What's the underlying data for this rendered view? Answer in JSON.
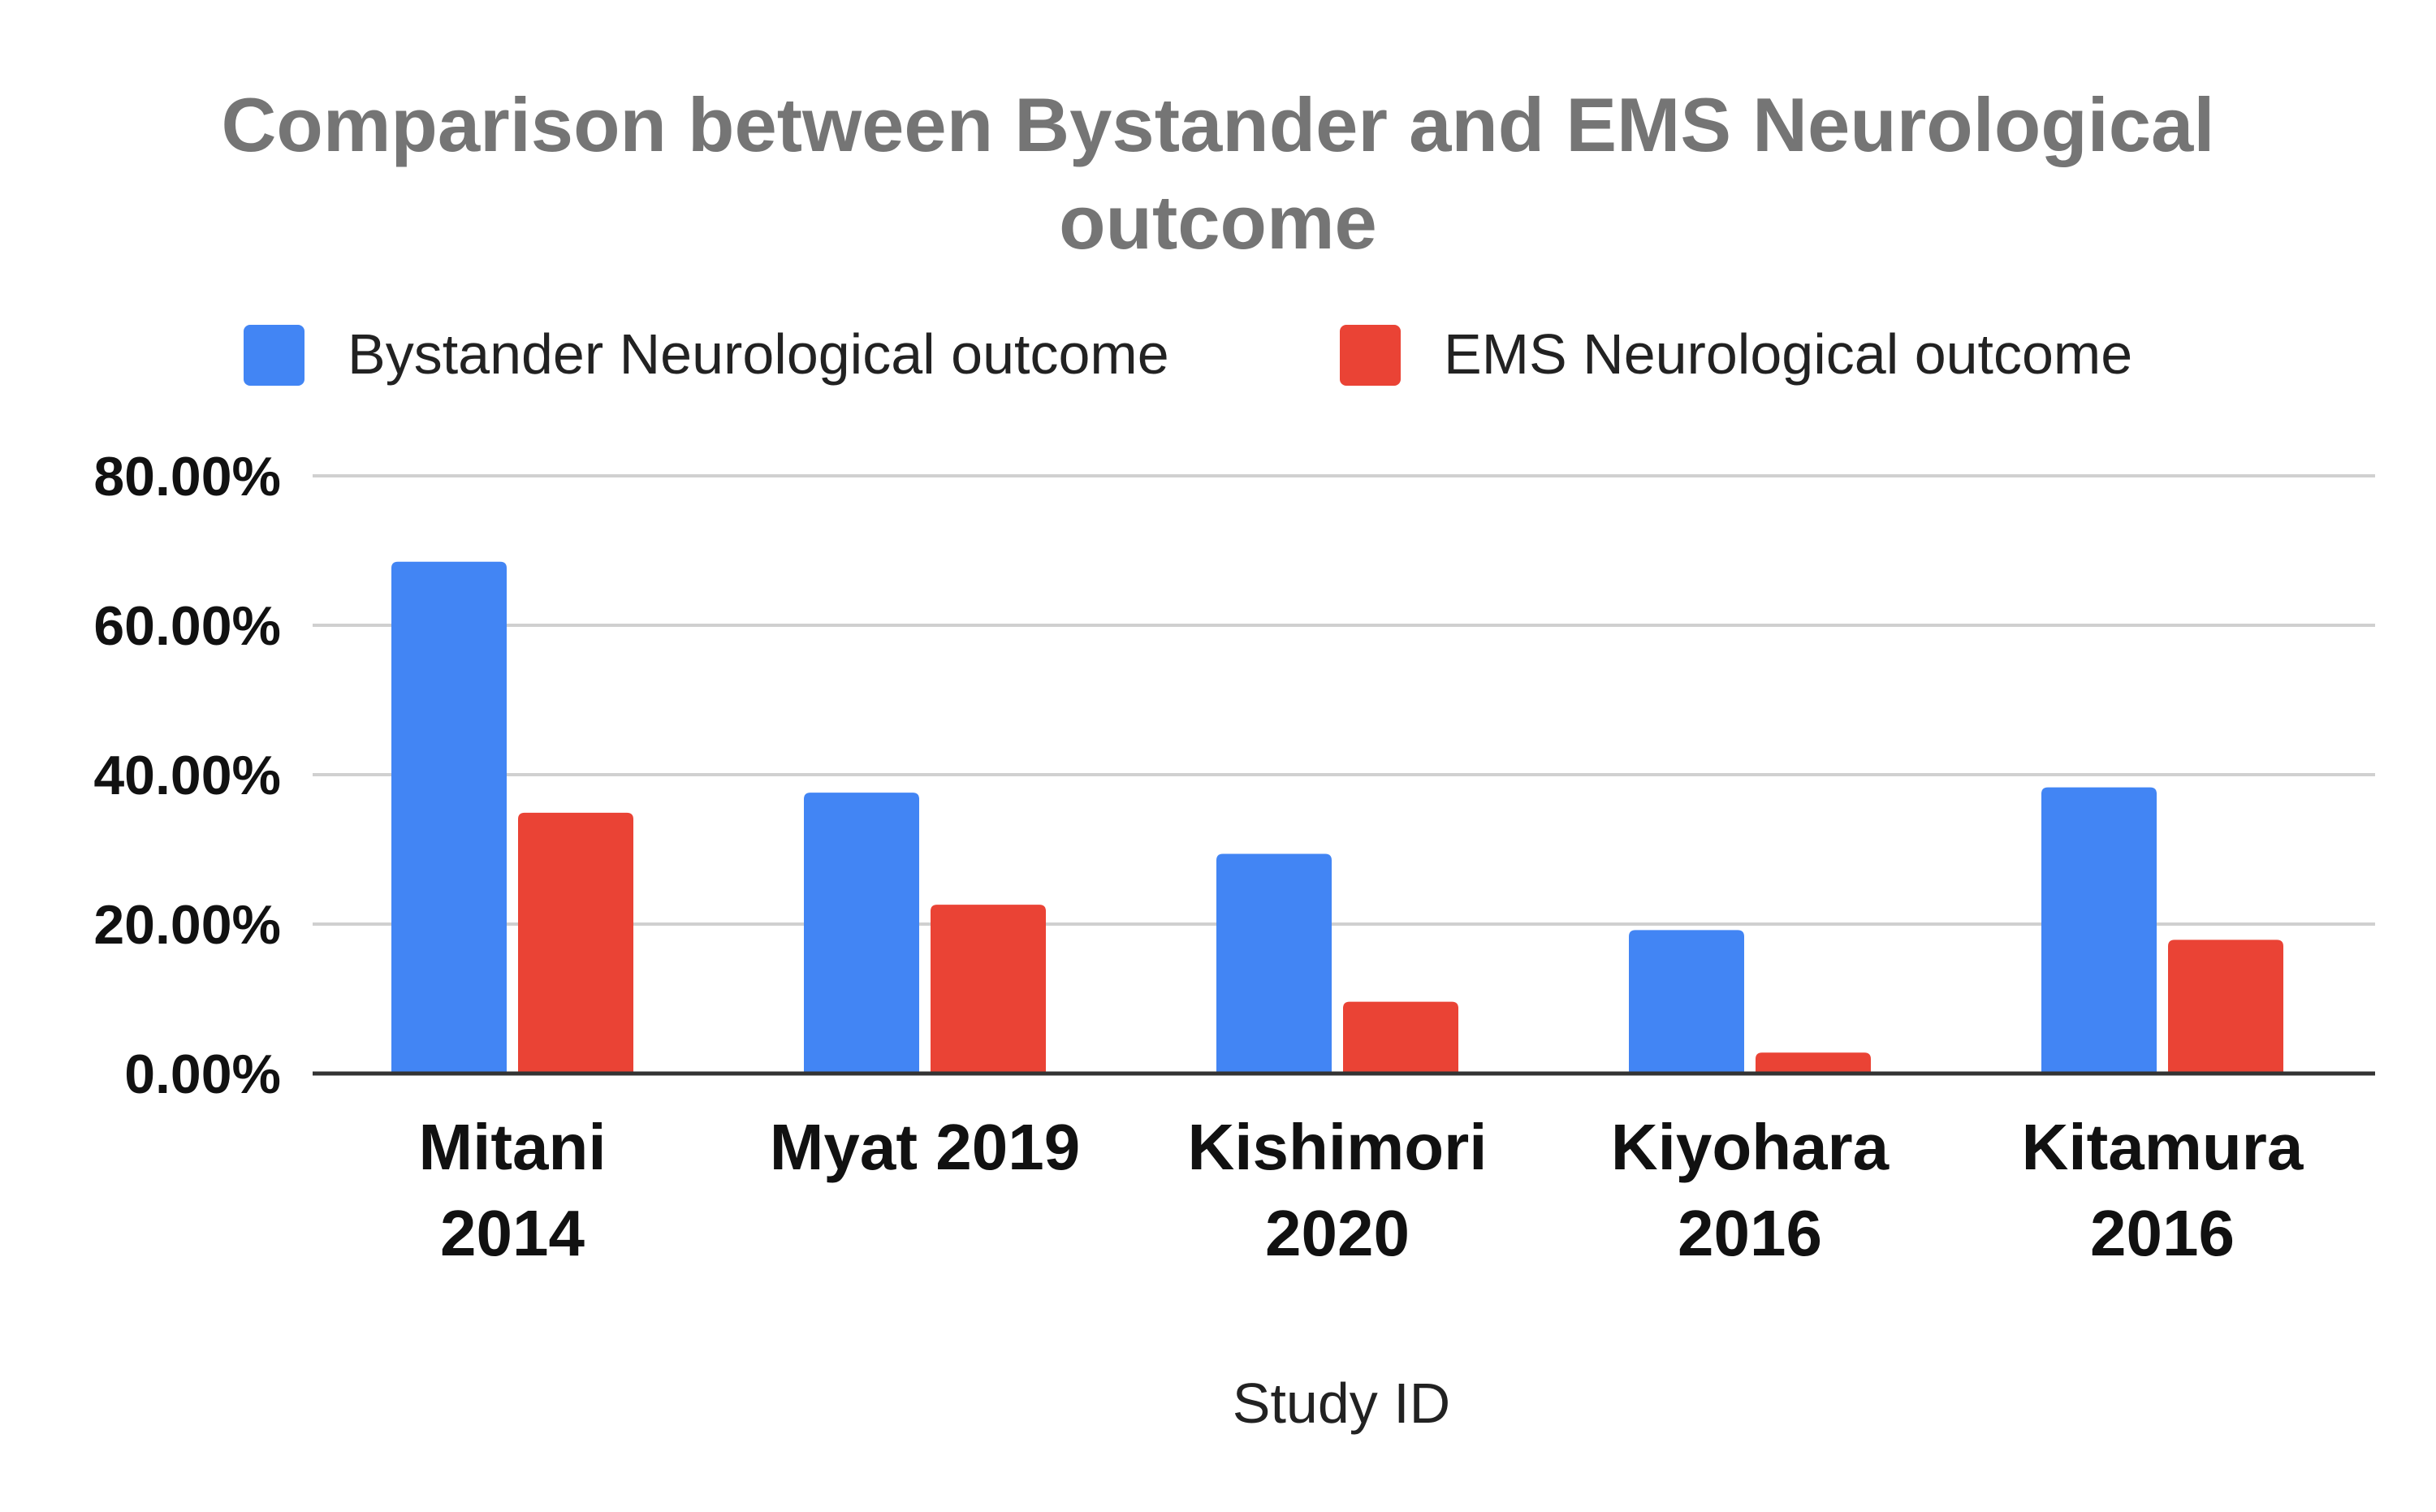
{
  "chart_data": {
    "type": "bar",
    "title_lines": [
      "Comparison between Bystander  and EMS Neurological",
      "outcome"
    ],
    "xlabel": "Study ID",
    "ylabel": "",
    "ylim": [
      0,
      80
    ],
    "yticks": [
      0,
      20,
      40,
      60,
      80
    ],
    "ytick_labels": [
      "0.00%",
      "20.00%",
      "40.00%",
      "60.00%",
      "80.00%"
    ],
    "grid": true,
    "legend_position": "top",
    "categories": [
      [
        "Mitani",
        "2014"
      ],
      [
        "Myat 2019"
      ],
      [
        "Kishimori",
        "2020"
      ],
      [
        "Kiyohara",
        "2016"
      ],
      [
        "Kitamura",
        "2016"
      ]
    ],
    "series": [
      {
        "name": "Bystander Neurological outcome",
        "color": "#4285f4",
        "values": [
          68.5,
          37.6,
          29.4,
          19.2,
          38.3
        ]
      },
      {
        "name": "EMS Neurological outcome",
        "color": "#ea4335",
        "values": [
          34.9,
          22.6,
          9.6,
          2.8,
          17.9
        ]
      }
    ]
  }
}
